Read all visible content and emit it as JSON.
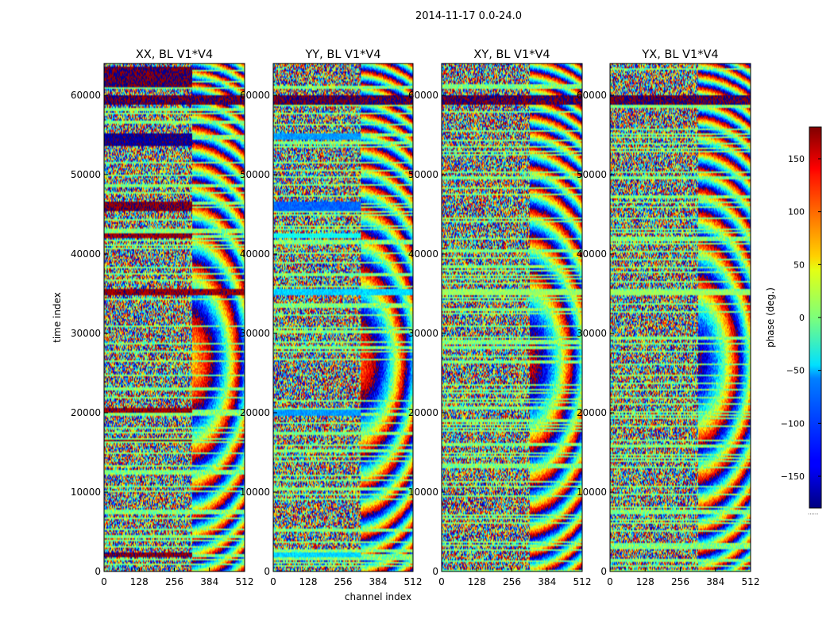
{
  "figure": {
    "suptitle": "2014-11-17 0.0-24.0",
    "footnote": "......"
  },
  "chart_data": [
    {
      "type": "heatmap",
      "title": "XX, BL V1*V4",
      "xlabel": "channel index",
      "ylabel": "time index",
      "xlim": [
        0,
        512
      ],
      "ylim": [
        0,
        64000
      ],
      "xticks": [
        0,
        128,
        256,
        384,
        512
      ],
      "yticks": [
        0,
        10000,
        20000,
        30000,
        40000,
        50000,
        60000
      ],
      "value_range": [
        -180,
        180
      ],
      "seed": 11,
      "pattern": {
        "fringe_start_channel": 320,
        "bands": [
          {
            "t0": 58800,
            "t1": 60000,
            "phase": 180,
            "ch1": 512
          },
          {
            "t0": 61000,
            "t1": 63500,
            "phase": 180,
            "ch1": 320
          },
          {
            "t0": 53600,
            "t1": 55200,
            "phase": -170,
            "ch1": 320
          },
          {
            "t0": 45400,
            "t1": 46600,
            "phase": 175,
            "ch1": 320
          },
          {
            "t0": 42000,
            "t1": 42500,
            "phase": 170,
            "ch1": 320
          },
          {
            "t0": 34800,
            "t1": 35500,
            "phase": 170,
            "ch1": 512
          },
          {
            "t0": 20100,
            "t1": 20600,
            "phase": 170,
            "ch1": 320
          },
          {
            "t0": 16300,
            "t1": 16700,
            "phase": 170,
            "ch1": 320
          },
          {
            "t0": 1800,
            "t1": 2400,
            "phase": 175,
            "ch1": 320
          }
        ]
      }
    },
    {
      "type": "heatmap",
      "title": "YY, BL V1*V4",
      "xlabel": "channel index",
      "ylabel": "",
      "xlim": [
        0,
        512
      ],
      "ylim": [
        0,
        64000
      ],
      "xticks": [
        0,
        128,
        256,
        384,
        512
      ],
      "yticks": [
        0,
        10000,
        20000,
        30000,
        40000,
        50000,
        60000
      ],
      "value_range": [
        -180,
        180
      ],
      "seed": 23,
      "pattern": {
        "fringe_start_channel": 320,
        "bands": [
          {
            "t0": 58800,
            "t1": 60000,
            "phase": 180,
            "ch1": 512
          },
          {
            "t0": 54500,
            "t1": 55200,
            "phase": -80,
            "ch1": 320
          },
          {
            "t0": 45500,
            "t1": 46500,
            "phase": -100,
            "ch1": 320
          },
          {
            "t0": 42000,
            "t1": 42500,
            "phase": -40,
            "ch1": 320
          },
          {
            "t0": 34800,
            "t1": 35500,
            "phase": -60,
            "ch1": 512
          },
          {
            "t0": 19700,
            "t1": 20400,
            "phase": -80,
            "ch1": 320
          },
          {
            "t0": 1800,
            "t1": 2400,
            "phase": -60,
            "ch1": 320
          }
        ]
      }
    },
    {
      "type": "heatmap",
      "title": "XY, BL V1*V4",
      "xlabel": "",
      "ylabel": "",
      "xlim": [
        0,
        512
      ],
      "ylim": [
        0,
        64000
      ],
      "xticks": [
        0,
        128,
        256,
        384,
        512
      ],
      "yticks": [
        0,
        10000,
        20000,
        30000,
        40000,
        50000,
        60000
      ],
      "value_range": [
        -180,
        180
      ],
      "seed": 37,
      "pattern": {
        "fringe_start_channel": 320,
        "bands": [
          {
            "t0": 58800,
            "t1": 60000,
            "phase": 180,
            "ch1": 512
          },
          {
            "t0": 34800,
            "t1": 35300,
            "phase": 10,
            "ch1": 512
          }
        ]
      }
    },
    {
      "type": "heatmap",
      "title": "YX, BL V1*V4",
      "xlabel": "",
      "ylabel": "",
      "xlim": [
        0,
        512
      ],
      "ylim": [
        0,
        64000
      ],
      "xticks": [
        0,
        128,
        256,
        384,
        512
      ],
      "yticks": [
        0,
        10000,
        20000,
        30000,
        40000,
        50000,
        60000
      ],
      "value_range": [
        -180,
        180
      ],
      "seed": 53,
      "pattern": {
        "fringe_start_channel": 320,
        "bands": [
          {
            "t0": 58800,
            "t1": 60000,
            "phase": 180,
            "ch1": 512
          },
          {
            "t0": 34800,
            "t1": 35300,
            "phase": 10,
            "ch1": 512
          }
        ]
      }
    }
  ],
  "colorbar": {
    "label": "phase (deg.)",
    "range": [
      -180,
      180
    ],
    "ticks": [
      150,
      100,
      50,
      0,
      -50,
      -100,
      -150
    ],
    "tick_labels": [
      "150",
      "100",
      "50",
      "0",
      "−50",
      "−100",
      "−150"
    ],
    "colormap": "jet"
  }
}
